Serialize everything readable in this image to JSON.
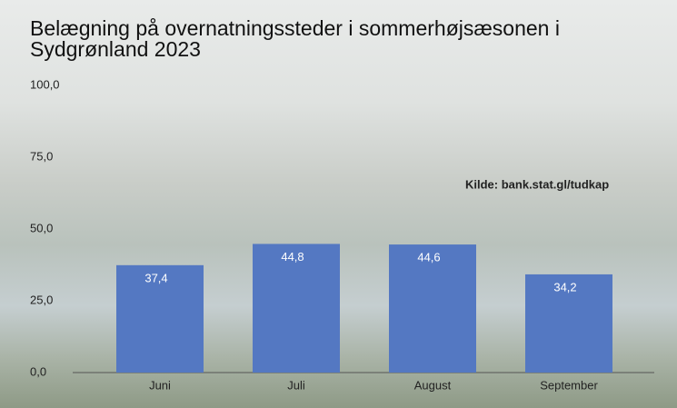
{
  "chart_data": {
    "type": "bar",
    "title": "Belægning på overnatningssteder i sommerhøjsæsonen i Sydgrønland 2023",
    "annotation": "Kilde: bank.stat.gl/tudkap",
    "categories": [
      "Juni",
      "Juli",
      "August",
      "September"
    ],
    "values": [
      37.4,
      44.8,
      44.6,
      34.2
    ],
    "value_labels": [
      "37,4",
      "44,8",
      "44,6",
      "34,2"
    ],
    "color": "#5478c2",
    "ylim": [
      0,
      100
    ],
    "yticks": [
      {
        "value": 0,
        "label": "0,0"
      },
      {
        "value": 25,
        "label": "25,0"
      },
      {
        "value": 50,
        "label": "50,0"
      },
      {
        "value": 75,
        "label": "75,0"
      },
      {
        "value": 100,
        "label": "100,0"
      }
    ],
    "grid": false
  }
}
